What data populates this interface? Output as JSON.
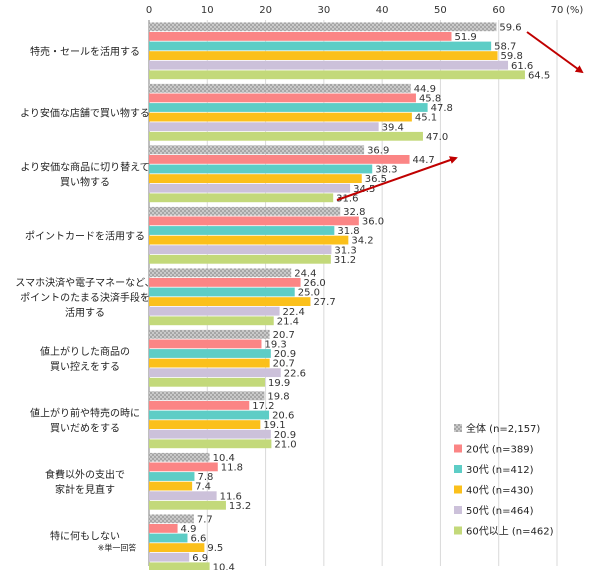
{
  "chart_data": {
    "type": "bar",
    "orientation": "horizontal",
    "axis_unit": "(%)",
    "xlim": [
      0,
      70
    ],
    "ticks": [
      0,
      10,
      20,
      30,
      40,
      50,
      60,
      70
    ],
    "legend_position": "bottom-right",
    "categories": [
      {
        "lines": [
          "特売・セールを活用する"
        ]
      },
      {
        "lines": [
          "より安価な店舗で買い物する"
        ]
      },
      {
        "lines": [
          "より安価な商品に切り替えて",
          "買い物する"
        ]
      },
      {
        "lines": [
          "ポイントカードを活用する"
        ]
      },
      {
        "lines": [
          "スマホ決済や電子マネーなど、",
          "ポイントのたまる決済手段を",
          "活用する"
        ]
      },
      {
        "lines": [
          "値上がりした商品の",
          "買い控えをする"
        ]
      },
      {
        "lines": [
          "値上がり前や特売の時に",
          "買いだめをする"
        ]
      },
      {
        "lines": [
          "食費以外の支出で",
          "家計を見直す"
        ]
      },
      {
        "lines": [
          "特に何もしない"
        ],
        "note": "※単一回答"
      }
    ],
    "series": [
      {
        "name": "全体 (n=2,157)",
        "color": "#a6a6a6",
        "pattern": "dots",
        "values": [
          59.6,
          44.9,
          36.9,
          32.8,
          24.4,
          20.7,
          19.8,
          10.4,
          7.7
        ]
      },
      {
        "name": "20代 (n=389)",
        "color": "#fb8585",
        "values": [
          51.9,
          45.8,
          44.7,
          36.0,
          26.0,
          19.3,
          17.2,
          11.8,
          4.9
        ]
      },
      {
        "name": "30代 (n=412)",
        "color": "#5dcdc6",
        "values": [
          58.7,
          47.8,
          38.3,
          31.8,
          25.0,
          20.9,
          20.6,
          7.8,
          6.6
        ]
      },
      {
        "name": "40代 (n=430)",
        "color": "#fbc01b",
        "values": [
          59.8,
          45.1,
          36.5,
          34.2,
          27.7,
          20.7,
          19.1,
          7.4,
          9.5
        ]
      },
      {
        "name": "50代 (n=464)",
        "color": "#ccc1da",
        "values": [
          61.6,
          39.4,
          34.5,
          31.3,
          22.4,
          22.6,
          20.9,
          11.6,
          6.9
        ]
      },
      {
        "name": "60代以上 (n=462)",
        "color": "#c3d97a",
        "values": [
          64.5,
          47.0,
          31.6,
          31.2,
          21.4,
          19.9,
          21.0,
          13.2,
          10.4
        ]
      }
    ]
  }
}
